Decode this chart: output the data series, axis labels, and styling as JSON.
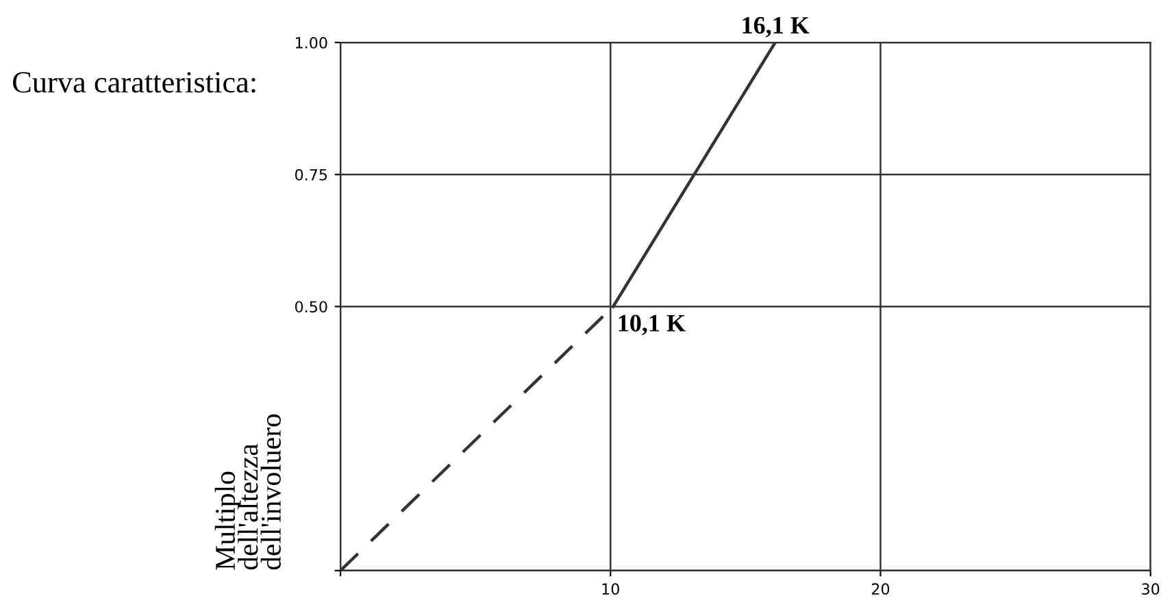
{
  "chart_data": {
    "type": "line",
    "title": "Curva caratteristica:",
    "ylabel": "Multiplo\ndell'altezza\ndell'involuero",
    "series": [
      {
        "color": "#333333",
        "line_style": "dashed",
        "x": [
          0,
          10.1
        ],
        "values": [
          0,
          0.5
        ]
      },
      {
        "color": "#333333",
        "line_style": "solid",
        "x": [
          10.1,
          16.1
        ],
        "values": [
          0.5,
          1.0
        ]
      }
    ],
    "annotations": [
      {
        "text": "10,1 K",
        "x": 10.1,
        "y": 0.5
      },
      {
        "text": "16,1 K",
        "x": 16.1,
        "y": 1.0
      }
    ],
    "xlim": [
      0,
      30
    ],
    "ylim": [
      0,
      1
    ],
    "xticks": [
      {
        "value": 0,
        "label": null
      },
      10,
      20,
      30
    ],
    "yticks": [
      {
        "value": 0,
        "label": null
      },
      {
        "value": 0.5,
        "label": "0.50"
      },
      {
        "value": 0.75,
        "label": "0.75"
      },
      {
        "value": 1,
        "label": "1.00"
      }
    ],
    "grid": true,
    "marker": "none"
  }
}
